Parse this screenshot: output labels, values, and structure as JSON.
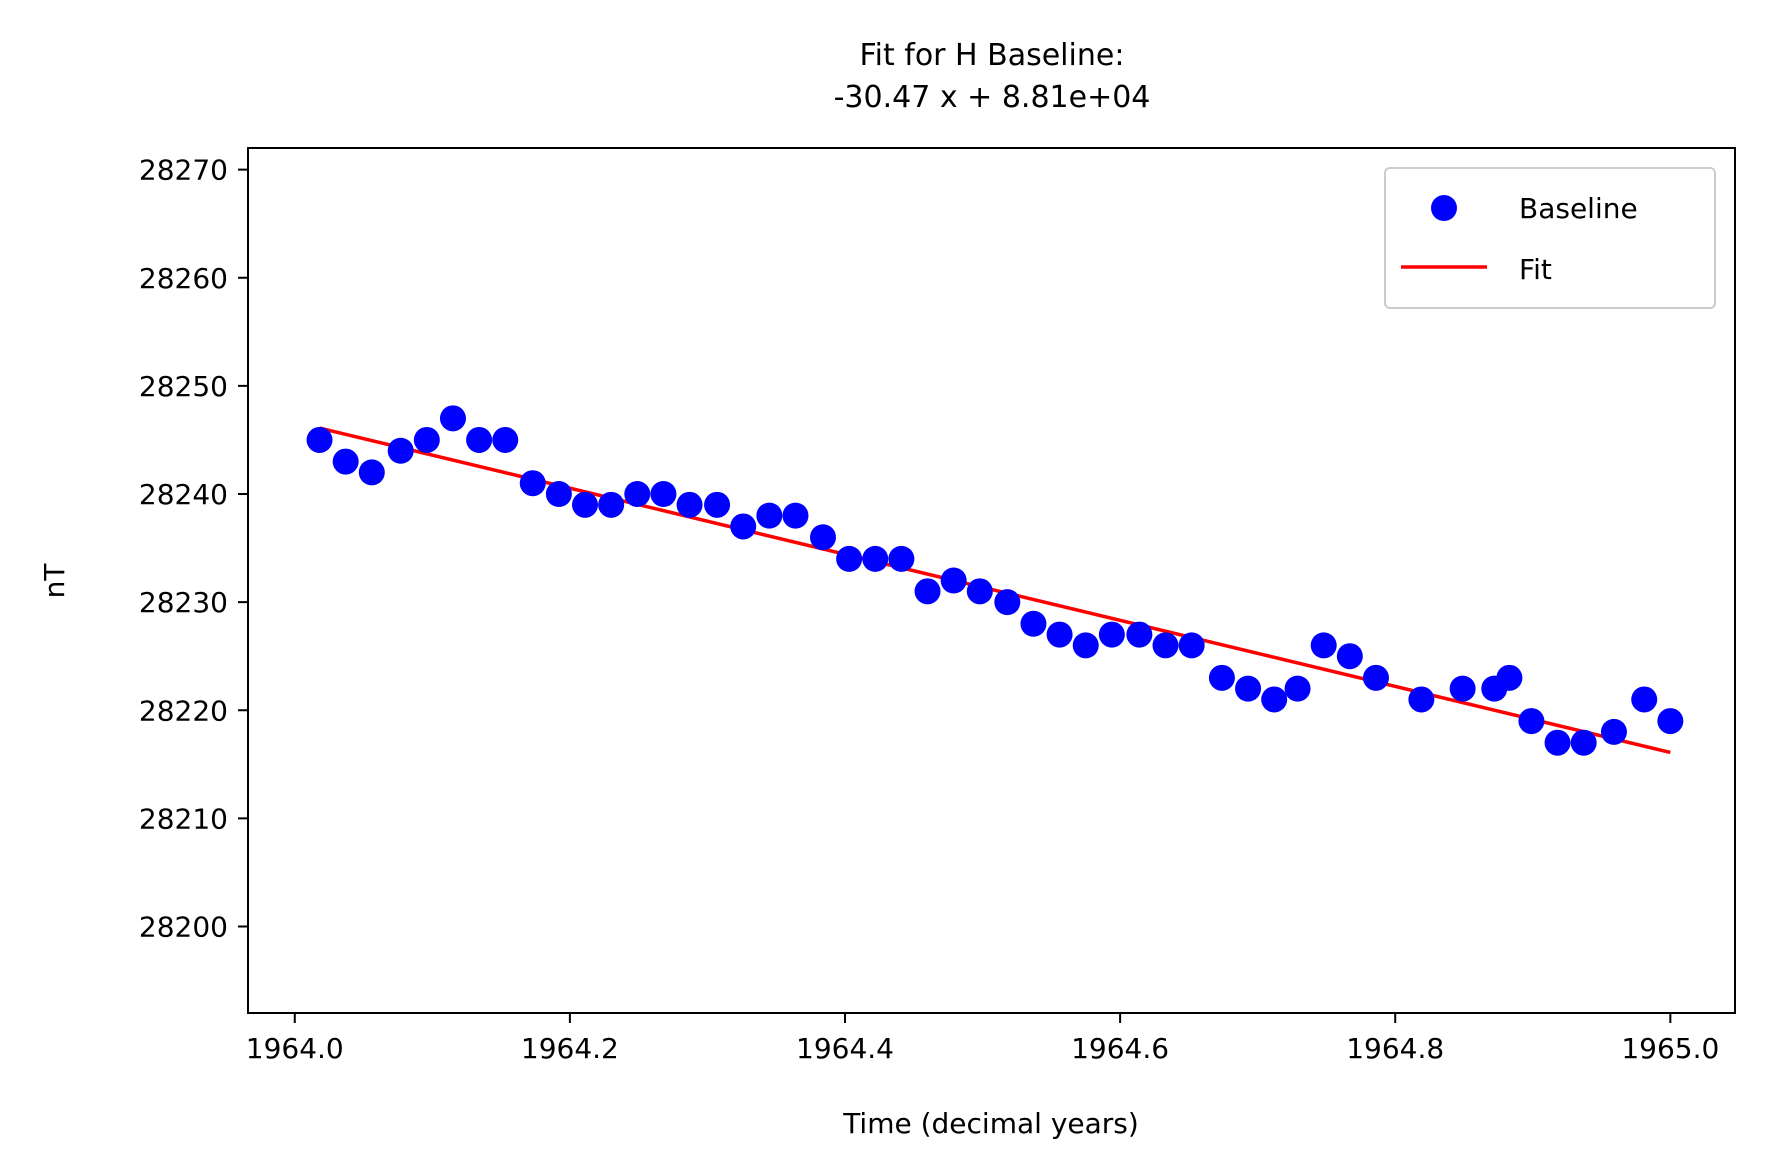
{
  "chart_data": {
    "type": "scatter",
    "title_line1": "Fit for H Baseline:",
    "title_line2": "-30.47 x + 8.81e+04",
    "xlabel": "Time (decimal years)",
    "ylabel": "nT",
    "xlim": [
      1963.966,
      1965.047
    ],
    "ylim": [
      28192,
      28272
    ],
    "xticks": [
      1964.0,
      1964.2,
      1964.4,
      1964.6,
      1964.8,
      1965.0
    ],
    "xtick_labels": [
      "1964.0",
      "1964.2",
      "1964.4",
      "1964.6",
      "1964.8",
      "1965.0"
    ],
    "yticks": [
      28200,
      28210,
      28220,
      28230,
      28240,
      28250,
      28260,
      28270
    ],
    "ytick_labels": [
      "28200",
      "28210",
      "28220",
      "28230",
      "28240",
      "28250",
      "28260",
      "28270"
    ],
    "grid": false,
    "legend_position": "top-right",
    "series": [
      {
        "name": "Baseline",
        "kind": "scatter",
        "color": "#0000ff",
        "points": [
          [
            1964.018,
            28245
          ],
          [
            1964.037,
            28243
          ],
          [
            1964.056,
            28242
          ],
          [
            1964.077,
            28244
          ],
          [
            1964.096,
            28245
          ],
          [
            1964.115,
            28247
          ],
          [
            1964.134,
            28245
          ],
          [
            1964.153,
            28245
          ],
          [
            1964.173,
            28241
          ],
          [
            1964.192,
            28240
          ],
          [
            1964.211,
            28239
          ],
          [
            1964.23,
            28239
          ],
          [
            1964.249,
            28240
          ],
          [
            1964.268,
            28240
          ],
          [
            1964.287,
            28239
          ],
          [
            1964.307,
            28239
          ],
          [
            1964.326,
            28237
          ],
          [
            1964.345,
            28238
          ],
          [
            1964.364,
            28238
          ],
          [
            1964.384,
            28236
          ],
          [
            1964.403,
            28234
          ],
          [
            1964.422,
            28234
          ],
          [
            1964.441,
            28234
          ],
          [
            1964.46,
            28231
          ],
          [
            1964.479,
            28232
          ],
          [
            1964.498,
            28231
          ],
          [
            1964.518,
            28230
          ],
          [
            1964.537,
            28228
          ],
          [
            1964.556,
            28227
          ],
          [
            1964.575,
            28226
          ],
          [
            1964.594,
            28227
          ],
          [
            1964.614,
            28227
          ],
          [
            1964.633,
            28226
          ],
          [
            1964.652,
            28226
          ],
          [
            1964.674,
            28223
          ],
          [
            1964.693,
            28222
          ],
          [
            1964.712,
            28221
          ],
          [
            1964.729,
            28222
          ],
          [
            1964.748,
            28226
          ],
          [
            1964.767,
            28225
          ],
          [
            1964.786,
            28223
          ],
          [
            1964.819,
            28221
          ],
          [
            1964.849,
            28222
          ],
          [
            1964.872,
            28222
          ],
          [
            1964.883,
            28223
          ],
          [
            1964.899,
            28219
          ],
          [
            1964.918,
            28217
          ],
          [
            1964.937,
            28217
          ],
          [
            1964.959,
            28218
          ],
          [
            1964.981,
            28221
          ],
          [
            1965.0,
            28219
          ]
        ]
      },
      {
        "name": "Fit",
        "kind": "line",
        "color": "#ff0000",
        "points": [
          [
            1964.018,
            28246.1
          ],
          [
            1965.0,
            28216.1
          ]
        ]
      }
    ]
  }
}
